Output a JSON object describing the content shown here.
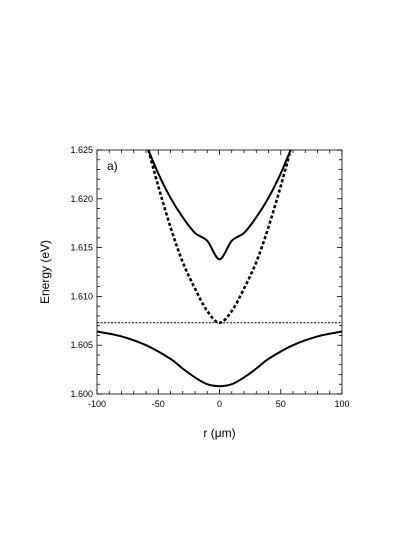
{
  "chart_data": {
    "type": "line",
    "panel_label": "a)",
    "xlabel": "r (μm)",
    "ylabel": "Energy (eV)",
    "xlim": [
      -100,
      100
    ],
    "ylim": [
      1.6,
      1.625
    ],
    "x_ticks": [
      -100,
      -50,
      0,
      50,
      100
    ],
    "x_tick_labels": [
      "-100",
      "-50",
      "0",
      "50",
      "100"
    ],
    "y_ticks": [
      1.6,
      1.605,
      1.61,
      1.615,
      1.62,
      1.625
    ],
    "y_tick_labels": [
      "1.600",
      "1.605",
      "1.610",
      "1.615",
      "1.620",
      "1.625"
    ],
    "grid": false,
    "legend": "none",
    "series": [
      {
        "style": "solid",
        "x": [
          -60,
          -50,
          -40,
          -30,
          -20,
          -10,
          0,
          10,
          20,
          30,
          40,
          50,
          60
        ],
        "y": [
          1.6256,
          1.6226,
          1.6201,
          1.6181,
          1.6165,
          1.6157,
          1.6138,
          1.6157,
          1.6165,
          1.6181,
          1.6201,
          1.6226,
          1.6256
        ]
      },
      {
        "style": "dashed",
        "x": [
          -58,
          -50,
          -40,
          -30,
          -20,
          -10,
          0,
          10,
          20,
          30,
          40,
          50,
          58
        ],
        "y": [
          1.625,
          1.6213,
          1.6171,
          1.6135,
          1.6108,
          1.6085,
          1.6073,
          1.6085,
          1.6108,
          1.6135,
          1.6171,
          1.6213,
          1.625
        ]
      },
      {
        "style": "solid",
        "x": [
          -100,
          -80,
          -60,
          -40,
          -30,
          -20,
          -10,
          0,
          10,
          20,
          30,
          40,
          60,
          80,
          100
        ],
        "y": [
          1.6064,
          1.6059,
          1.605,
          1.6036,
          1.6026,
          1.6017,
          1.601,
          1.6008,
          1.601,
          1.6017,
          1.6026,
          1.6036,
          1.605,
          1.6059,
          1.6064
        ]
      },
      {
        "style": "dotted",
        "x": [
          -100,
          100
        ],
        "y": [
          1.6073,
          1.6073
        ]
      }
    ]
  }
}
